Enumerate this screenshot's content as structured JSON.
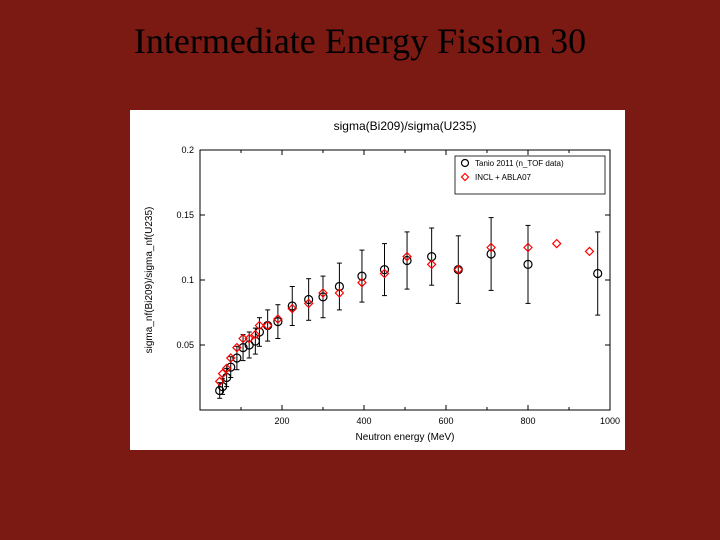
{
  "slide": {
    "title": "Intermediate Energy Fission 30",
    "title_fontsize": 36,
    "title_color": "#000000",
    "background": "#7a1a13"
  },
  "chart": {
    "type": "scatter",
    "title": "sigma(Bi209)/sigma(U235)",
    "title_fontsize": 12,
    "xlabel": "Neutron energy (MeV)",
    "ylabel": "sigma_nf(Bi209)/sigma_nf(U235)",
    "label_fontsize": 10,
    "tick_fontsize": 9,
    "background_color": "#ffffff",
    "errorbar_color": "#000000",
    "xlim": [
      0,
      1000
    ],
    "ylim": [
      0,
      0.2
    ],
    "xticks": [
      200,
      400,
      600,
      800,
      1000
    ],
    "yticks": [
      0.05,
      0.1,
      0.15,
      0.2
    ],
    "xminor": [
      100,
      300,
      500,
      700,
      900
    ],
    "legend": {
      "box": true,
      "position": "top-right",
      "fontsize": 8,
      "items": [
        {
          "label": "Tanio 2011 (n_TOF data)",
          "marker": "circle",
          "color": "#000000"
        },
        {
          "label": "INCL + ABLA07",
          "marker": "diamond",
          "color": "#ff0000"
        }
      ]
    },
    "series": [
      {
        "name": "tanio-2011",
        "label": "Tanio 2011 (n_TOF data)",
        "marker": "circle",
        "marker_size": 4,
        "color": "#000000",
        "fill": "none",
        "data": [
          {
            "x": 48,
            "y": 0.015,
            "err": 0.006
          },
          {
            "x": 55,
            "y": 0.018,
            "err": 0.006
          },
          {
            "x": 65,
            "y": 0.025,
            "err": 0.007
          },
          {
            "x": 75,
            "y": 0.033,
            "err": 0.008
          },
          {
            "x": 90,
            "y": 0.04,
            "err": 0.009
          },
          {
            "x": 105,
            "y": 0.048,
            "err": 0.01
          },
          {
            "x": 120,
            "y": 0.05,
            "err": 0.01
          },
          {
            "x": 135,
            "y": 0.053,
            "err": 0.01
          },
          {
            "x": 145,
            "y": 0.06,
            "err": 0.011
          },
          {
            "x": 165,
            "y": 0.065,
            "err": 0.012
          },
          {
            "x": 190,
            "y": 0.068,
            "err": 0.013
          },
          {
            "x": 225,
            "y": 0.08,
            "err": 0.015
          },
          {
            "x": 265,
            "y": 0.085,
            "err": 0.016
          },
          {
            "x": 300,
            "y": 0.087,
            "err": 0.016
          },
          {
            "x": 340,
            "y": 0.095,
            "err": 0.018
          },
          {
            "x": 395,
            "y": 0.103,
            "err": 0.02
          },
          {
            "x": 450,
            "y": 0.108,
            "err": 0.02
          },
          {
            "x": 505,
            "y": 0.115,
            "err": 0.022
          },
          {
            "x": 565,
            "y": 0.118,
            "err": 0.022
          },
          {
            "x": 630,
            "y": 0.108,
            "err": 0.026
          },
          {
            "x": 710,
            "y": 0.12,
            "err": 0.028
          },
          {
            "x": 800,
            "y": 0.112,
            "err": 0.03
          },
          {
            "x": 970,
            "y": 0.105,
            "err": 0.032
          }
        ]
      },
      {
        "name": "incl-abla07",
        "label": "INCL + ABLA07",
        "marker": "diamond",
        "marker_size": 4,
        "color": "#ff0000",
        "fill": "none",
        "data": [
          {
            "x": 48,
            "y": 0.022
          },
          {
            "x": 55,
            "y": 0.028
          },
          {
            "x": 65,
            "y": 0.032
          },
          {
            "x": 75,
            "y": 0.04
          },
          {
            "x": 90,
            "y": 0.048
          },
          {
            "x": 105,
            "y": 0.055
          },
          {
            "x": 120,
            "y": 0.055
          },
          {
            "x": 135,
            "y": 0.058
          },
          {
            "x": 145,
            "y": 0.065
          },
          {
            "x": 165,
            "y": 0.065
          },
          {
            "x": 190,
            "y": 0.07
          },
          {
            "x": 225,
            "y": 0.078
          },
          {
            "x": 265,
            "y": 0.082
          },
          {
            "x": 300,
            "y": 0.09
          },
          {
            "x": 340,
            "y": 0.09
          },
          {
            "x": 395,
            "y": 0.098
          },
          {
            "x": 450,
            "y": 0.105
          },
          {
            "x": 505,
            "y": 0.118
          },
          {
            "x": 565,
            "y": 0.112
          },
          {
            "x": 630,
            "y": 0.108
          },
          {
            "x": 710,
            "y": 0.125
          },
          {
            "x": 800,
            "y": 0.125
          },
          {
            "x": 870,
            "y": 0.128
          },
          {
            "x": 950,
            "y": 0.122
          }
        ]
      }
    ]
  }
}
